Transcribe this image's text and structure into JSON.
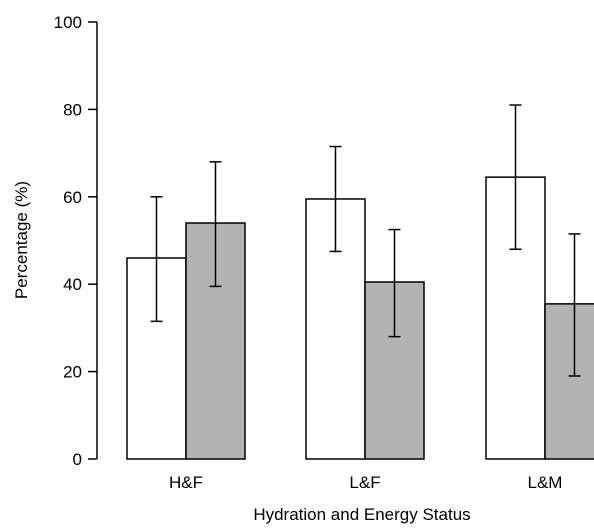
{
  "chart_data": {
    "type": "bar",
    "categories": [
      "H&F",
      "L&F",
      "L&M"
    ],
    "series": [
      {
        "color": "#ffffff",
        "values": [
          46,
          59.5,
          64.5
        ],
        "err_low": [
          31.5,
          47.5,
          48
        ],
        "err_high": [
          60,
          71.5,
          81
        ]
      },
      {
        "color": "#b3b3b3",
        "values": [
          54,
          40.5,
          35.5
        ],
        "err_low": [
          39.5,
          28,
          19
        ],
        "err_high": [
          68,
          52.5,
          51.5
        ]
      }
    ],
    "xlabel": "Hydration and Energy Status",
    "ylabel": "Percentage (%)",
    "ylim": [
      0,
      100
    ],
    "yticks": [
      0,
      20,
      40,
      60,
      80,
      100
    ],
    "grid": false
  }
}
